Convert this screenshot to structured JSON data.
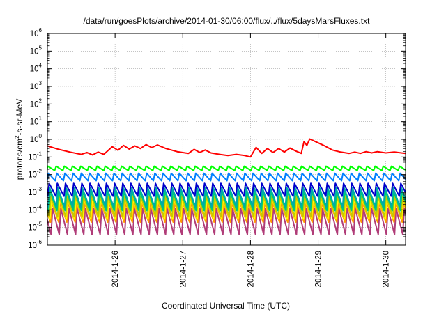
{
  "chart_data": {
    "type": "line",
    "title": "/data/run/goesPlots/archive/2014-01-30/06:00/flux/../flux/5daysMarsFluxes.txt",
    "xlabel": "Coordinated Universal Time (UTC)",
    "ylabel": "protons/cm²-s-sr-MeV",
    "ylabel_parts": {
      "before": "protons/cm",
      "sup": "2",
      "after": "-s-sr-MeV"
    },
    "y_scale": "log",
    "ylim": [
      1e-06,
      1000000.0
    ],
    "y_ticks": [
      {
        "exp": "-6"
      },
      {
        "exp": "-5"
      },
      {
        "exp": "-4"
      },
      {
        "exp": "-3"
      },
      {
        "exp": "-2"
      },
      {
        "exp": "-1"
      },
      {
        "exp": "0"
      },
      {
        "exp": "1"
      },
      {
        "exp": "2"
      },
      {
        "exp": "3"
      },
      {
        "exp": "4"
      },
      {
        "exp": "5"
      },
      {
        "exp": "6"
      }
    ],
    "xlim": [
      "2014-01-25T00:00",
      "2014-01-30T07:00"
    ],
    "x_ticks": [
      "2014-1-26",
      "2014-1-27",
      "2014-1-28",
      "2014-1-29",
      "2014-1-30"
    ],
    "grid": true,
    "legend": false,
    "series": [
      {
        "color": "#ff0000",
        "pattern": "trend",
        "points": [
          [
            "2014-01-25T00:00",
            0.42
          ],
          [
            "2014-01-25T04:00",
            0.27
          ],
          [
            "2014-01-25T08:00",
            0.19
          ],
          [
            "2014-01-25T12:00",
            0.14
          ],
          [
            "2014-01-25T14:00",
            0.18
          ],
          [
            "2014-01-25T16:00",
            0.13
          ],
          [
            "2014-01-25T18:00",
            0.19
          ],
          [
            "2014-01-25T20:00",
            0.14
          ],
          [
            "2014-01-25T23:00",
            0.38
          ],
          [
            "2014-01-26T01:00",
            0.24
          ],
          [
            "2014-01-26T03:00",
            0.45
          ],
          [
            "2014-01-26T05:00",
            0.28
          ],
          [
            "2014-01-26T07:00",
            0.42
          ],
          [
            "2014-01-26T09:00",
            0.3
          ],
          [
            "2014-01-26T11:00",
            0.5
          ],
          [
            "2014-01-26T13:00",
            0.34
          ],
          [
            "2014-01-26T15:00",
            0.48
          ],
          [
            "2014-01-26T18:00",
            0.3
          ],
          [
            "2014-01-26T22:00",
            0.2
          ],
          [
            "2014-01-27T02:00",
            0.16
          ],
          [
            "2014-01-27T04:00",
            0.27
          ],
          [
            "2014-01-27T06:00",
            0.18
          ],
          [
            "2014-01-27T08:00",
            0.25
          ],
          [
            "2014-01-27T10:00",
            0.17
          ],
          [
            "2014-01-27T13:00",
            0.14
          ],
          [
            "2014-01-27T16:00",
            0.12
          ],
          [
            "2014-01-27T19:00",
            0.14
          ],
          [
            "2014-01-27T22:00",
            0.12
          ],
          [
            "2014-01-28T00:00",
            0.1
          ],
          [
            "2014-01-28T02:00",
            0.35
          ],
          [
            "2014-01-28T04:00",
            0.16
          ],
          [
            "2014-01-28T06:00",
            0.3
          ],
          [
            "2014-01-28T08:00",
            0.18
          ],
          [
            "2014-01-28T10:00",
            0.3
          ],
          [
            "2014-01-28T12:00",
            0.19
          ],
          [
            "2014-01-28T14:00",
            0.32
          ],
          [
            "2014-01-28T16:00",
            0.22
          ],
          [
            "2014-01-28T18:00",
            0.16
          ],
          [
            "2014-01-28T19:00",
            0.75
          ],
          [
            "2014-01-28T20:00",
            0.45
          ],
          [
            "2014-01-28T21:00",
            1.05
          ],
          [
            "2014-01-28T23:00",
            0.75
          ],
          [
            "2014-01-29T02:00",
            0.45
          ],
          [
            "2014-01-29T05:00",
            0.25
          ],
          [
            "2014-01-29T08:00",
            0.19
          ],
          [
            "2014-01-29T11:00",
            0.16
          ],
          [
            "2014-01-29T13:00",
            0.19
          ],
          [
            "2014-01-29T15:00",
            0.16
          ],
          [
            "2014-01-29T17:00",
            0.2
          ],
          [
            "2014-01-29T19:00",
            0.17
          ],
          [
            "2014-01-29T21:00",
            0.2
          ],
          [
            "2014-01-30T00:00",
            0.17
          ],
          [
            "2014-01-30T03:00",
            0.19
          ],
          [
            "2014-01-30T07:00",
            0.16
          ]
        ]
      },
      {
        "color": "#00ff00",
        "pattern": "sawtooth",
        "peak": 0.03,
        "trough": 0.017,
        "period_hours": 2.9
      },
      {
        "color": "#0080ff",
        "pattern": "sawtooth",
        "peak": 0.012,
        "trough": 0.0045,
        "period_hours": 2.9
      },
      {
        "color": "#0000cc",
        "pattern": "sawtooth",
        "peak": 0.0032,
        "trough": 0.0006,
        "period_hours": 2.9
      },
      {
        "color": "#00aaaa",
        "pattern": "sawtooth",
        "peak": 0.0018,
        "trough": 0.00015,
        "period_hours": 2.9
      },
      {
        "color": "#00d070",
        "pattern": "sawtooth",
        "peak": 0.0011,
        "trough": 9e-05,
        "period_hours": 2.9
      },
      {
        "color": "#c8c800",
        "pattern": "sawtooth",
        "peak": 0.0006,
        "trough": 4e-05,
        "period_hours": 2.9
      },
      {
        "color": "#ffff00",
        "pattern": "sawtooth",
        "peak": 0.0004,
        "trough": 3e-05,
        "period_hours": 2.9
      },
      {
        "color": "#ff9900",
        "pattern": "sawtooth",
        "peak": 0.00025,
        "trough": 2e-05,
        "period_hours": 2.9
      },
      {
        "color": "#b03c78",
        "pattern": "sawtooth",
        "peak": 0.00012,
        "trough": 4e-06,
        "period_hours": 2.9
      }
    ]
  }
}
